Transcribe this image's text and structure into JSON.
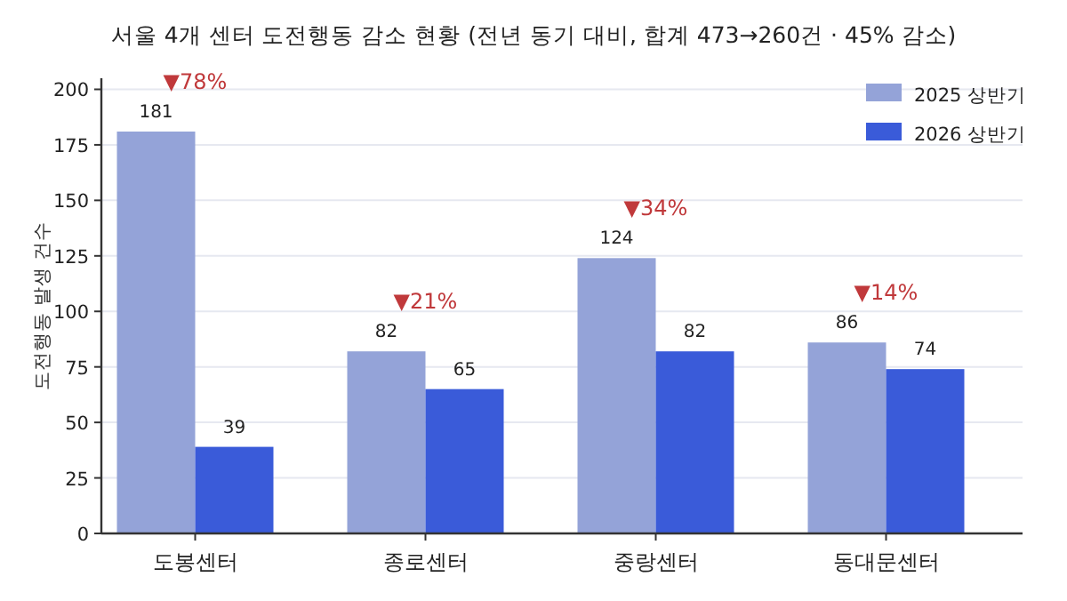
{
  "chart_data": {
    "type": "bar",
    "title": "서울 4개 센터 도전행동 감소 현황 (전년 동기 대비, 합계 473→260건 · 45% 감소)",
    "ylabel": "도전행동 발생 건수",
    "categories": [
      "도봉센터",
      "종로센터",
      "중랑센터",
      "동대문센터"
    ],
    "series": [
      {
        "name": "2025 상반기",
        "color": "#94a3d8",
        "values": [
          181,
          82,
          124,
          86
        ]
      },
      {
        "name": "2026 상반기",
        "color": "#3a5bd9",
        "values": [
          39,
          65,
          82,
          74
        ]
      }
    ],
    "ylim": [
      0,
      205
    ],
    "yticks": [
      0,
      25,
      50,
      75,
      100,
      125,
      150,
      175,
      200
    ],
    "grid": "y",
    "legend": "top right",
    "data_labels": true,
    "annotations": [
      "▼78%",
      "▼21%",
      "▼34%",
      "▼14%"
    ]
  }
}
